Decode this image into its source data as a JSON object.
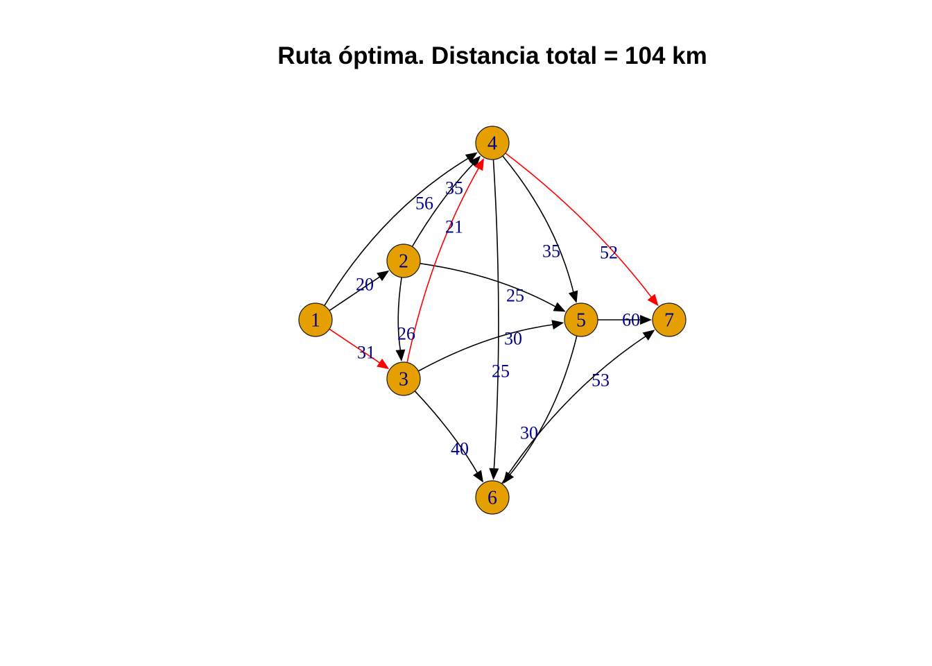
{
  "title": "Ruta óptima. Distancia total = 104 km",
  "colors": {
    "node_fill": "#E69F00",
    "node_stroke": "#1a1a1a",
    "node_label": "#00008B",
    "edge_label": "#00008B",
    "edge_default": "#000000",
    "edge_optimal": "#FF0000",
    "background": "#FFFFFF"
  },
  "nodes": [
    {
      "id": "1",
      "label": "1"
    },
    {
      "id": "2",
      "label": "2"
    },
    {
      "id": "3",
      "label": "3"
    },
    {
      "id": "4",
      "label": "4"
    },
    {
      "id": "5",
      "label": "5"
    },
    {
      "id": "6",
      "label": "6"
    },
    {
      "id": "7",
      "label": "7"
    }
  ],
  "edges": [
    {
      "from": "1",
      "to": "2",
      "weight": "20",
      "optimal": false
    },
    {
      "from": "1",
      "to": "3",
      "weight": "31",
      "optimal": true
    },
    {
      "from": "1",
      "to": "4",
      "weight": "56",
      "optimal": false
    },
    {
      "from": "2",
      "to": "3",
      "weight": "26",
      "optimal": false
    },
    {
      "from": "2",
      "to": "4",
      "weight": "35",
      "optimal": false
    },
    {
      "from": "2",
      "to": "5",
      "weight": "25",
      "optimal": false
    },
    {
      "from": "3",
      "to": "4",
      "weight": "21",
      "optimal": true
    },
    {
      "from": "3",
      "to": "5",
      "weight": "30",
      "optimal": false
    },
    {
      "from": "3",
      "to": "6",
      "weight": "40",
      "optimal": false
    },
    {
      "from": "4",
      "to": "5",
      "weight": "35",
      "optimal": false
    },
    {
      "from": "4",
      "to": "6",
      "weight": "25",
      "optimal": false
    },
    {
      "from": "4",
      "to": "7",
      "weight": "52",
      "optimal": true
    },
    {
      "from": "5",
      "to": "6",
      "weight": "30",
      "optimal": false
    },
    {
      "from": "5",
      "to": "7",
      "weight": "60",
      "optimal": false
    },
    {
      "from": "6",
      "to": "7",
      "weight": "53",
      "optimal": false
    }
  ]
}
